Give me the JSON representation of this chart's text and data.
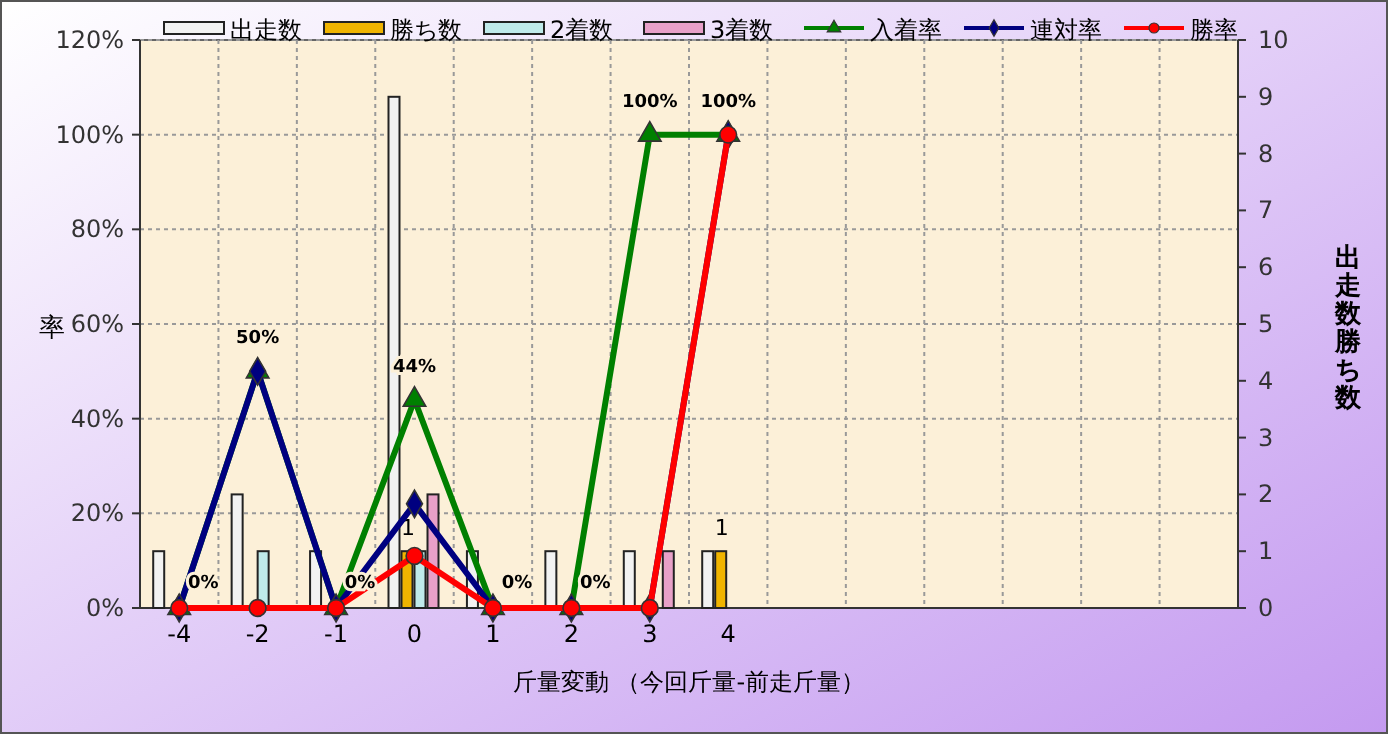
{
  "chart_data": {
    "type": "bar",
    "categories": [
      "-4",
      "-2",
      "-1",
      "0",
      "1",
      "2",
      "3",
      "4",
      null,
      null,
      null,
      null,
      null,
      null
    ],
    "xlabel": "斤量変動 （今回斤量-前走斤量）",
    "ylabel": "率",
    "y2label": "出走数勝ち数",
    "ylim": [
      0,
      120
    ],
    "yticks": [
      {
        "value": 0,
        "label": "0%"
      },
      {
        "value": 20,
        "label": "20%"
      },
      {
        "value": 40,
        "label": "40%"
      },
      {
        "value": 60,
        "label": "60%"
      },
      {
        "value": 80,
        "label": "80%"
      },
      {
        "value": 100,
        "label": "100%"
      },
      {
        "value": 120,
        "label": "120%"
      }
    ],
    "y2lim": [
      0,
      10
    ],
    "y2ticks": [
      0,
      1,
      2,
      3,
      4,
      5,
      6,
      7,
      8,
      9,
      10
    ],
    "grid": true,
    "legend": "top",
    "series": [
      {
        "name": "出走数",
        "axis": "y2",
        "color": "#f2f2f2",
        "values": [
          1,
          2,
          1,
          9,
          1,
          1,
          1,
          1,
          null,
          null,
          null,
          null,
          null,
          null
        ]
      },
      {
        "name": "勝ち数",
        "axis": "y2",
        "color": "#f0b400",
        "values": [
          0,
          0,
          0,
          1,
          0,
          0,
          0,
          1,
          null,
          null,
          null,
          null,
          null,
          null
        ],
        "value_labels": [
          null,
          null,
          null,
          "1",
          null,
          null,
          null,
          "1",
          null,
          null,
          null,
          null,
          null,
          null
        ]
      },
      {
        "name": "2着数",
        "axis": "y2",
        "color": "#bfeaea",
        "values": [
          0,
          1,
          0,
          1,
          0,
          0,
          0,
          0,
          null,
          null,
          null,
          null,
          null,
          null
        ]
      },
      {
        "name": "3着数",
        "axis": "y2",
        "color": "#e8a0c8",
        "values": [
          0,
          0,
          0,
          2,
          0,
          0,
          1,
          0,
          null,
          null,
          null,
          null,
          null,
          null
        ]
      },
      {
        "name": "入着率",
        "type": "line",
        "color": "#008000",
        "marker": "triangle",
        "values": [
          0,
          50,
          0,
          44,
          0,
          0,
          100,
          100,
          null,
          null,
          null,
          null,
          null,
          null
        ],
        "value_labels": [
          "0%",
          "50%",
          "0%",
          "44%",
          "0%",
          "0%",
          "100%",
          "100%",
          null,
          null,
          null,
          null,
          null,
          null
        ]
      },
      {
        "name": "連対率",
        "type": "line",
        "color": "#000080",
        "marker": "diamond",
        "values": [
          0,
          50,
          0,
          22,
          0,
          0,
          0,
          100,
          null,
          null,
          null,
          null,
          null,
          null
        ]
      },
      {
        "name": "勝率",
        "type": "line",
        "color": "#ff0000",
        "marker": "circle",
        "values": [
          0,
          0,
          0,
          11,
          0,
          0,
          0,
          100,
          null,
          null,
          null,
          null,
          null,
          null
        ]
      }
    ]
  }
}
